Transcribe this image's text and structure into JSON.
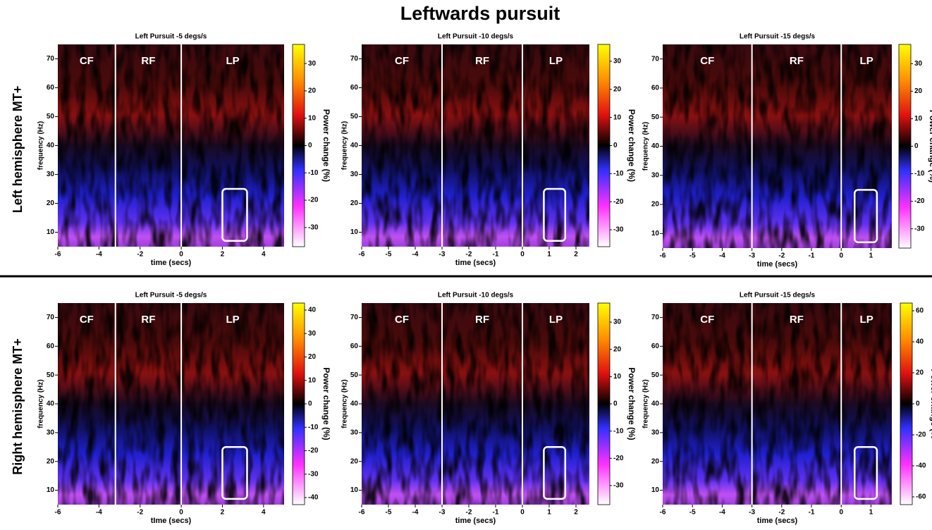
{
  "title": "Leftwards pursuit",
  "row_labels": [
    "Left hemisphere MT+",
    "Right hemisphere MT+"
  ],
  "chart_data": [
    {
      "type": "heatmap",
      "title": "Left Pursuit -5 degs/s",
      "xlabel": "time (secs)",
      "ylabel": "frequency (Hz)",
      "xlim": [
        -6,
        5
      ],
      "xticks": [
        -6,
        -4,
        -2,
        0,
        2,
        4
      ],
      "ylim": [
        5,
        75
      ],
      "yticks": [
        10,
        20,
        30,
        40,
        50,
        60,
        70
      ],
      "phases": [
        {
          "label": "CF",
          "start": -6
        },
        {
          "label": "RF",
          "start": -3.2
        },
        {
          "label": "LP",
          "start": 0
        }
      ],
      "highlight": {
        "x": [
          2,
          3.2
        ],
        "y": [
          7,
          25
        ]
      },
      "colorbar": {
        "label": "Power change (%)",
        "lim": [
          -37,
          37
        ],
        "ticks": [
          -30,
          -20,
          -10,
          0,
          10,
          20,
          30
        ]
      }
    },
    {
      "type": "heatmap",
      "title": "Left Pursuit -10 degs/s",
      "xlabel": "time (secs)",
      "ylabel": "frequency (Hz)",
      "xlim": [
        -6,
        2.5
      ],
      "xticks": [
        -6,
        -5,
        -4,
        -3,
        -2,
        -1,
        0,
        1,
        2
      ],
      "ylim": [
        5,
        75
      ],
      "yticks": [
        10,
        20,
        30,
        40,
        50,
        60,
        70
      ],
      "phases": [
        {
          "label": "CF",
          "start": -6
        },
        {
          "label": "RF",
          "start": -3
        },
        {
          "label": "LP",
          "start": 0
        }
      ],
      "highlight": {
        "x": [
          0.8,
          1.6
        ],
        "y": [
          7,
          25
        ]
      },
      "colorbar": {
        "label": "Power change (%)",
        "lim": [
          -36,
          36
        ],
        "ticks": [
          -30,
          -20,
          -10,
          0,
          10,
          20,
          30
        ]
      }
    },
    {
      "type": "heatmap",
      "title": "Left Pursuit -15 degs/s",
      "xlabel": "time (secs)",
      "ylabel": "frequency (Hz)",
      "xlim": [
        -6,
        1.7
      ],
      "xticks": [
        -6,
        -5,
        -4,
        -3,
        -2,
        -1,
        0,
        1
      ],
      "ylim": [
        5,
        75
      ],
      "yticks": [
        10,
        20,
        30,
        40,
        50,
        60,
        70
      ],
      "phases": [
        {
          "label": "CF",
          "start": -6
        },
        {
          "label": "RF",
          "start": -3
        },
        {
          "label": "LP",
          "start": 0
        }
      ],
      "highlight": {
        "x": [
          0.45,
          1.2
        ],
        "y": [
          7,
          25
        ]
      },
      "colorbar": {
        "label": "Power change (%)",
        "lim": [
          -37,
          37
        ],
        "ticks": [
          -30,
          -20,
          -10,
          0,
          10,
          20,
          30
        ]
      }
    },
    {
      "type": "heatmap",
      "title": "Left Pursuit -5 degs/s",
      "xlabel": "tIme (secs)",
      "ylabel": "frequency (Hz)",
      "xlim": [
        -6,
        5
      ],
      "xticks": [
        -6,
        -4,
        -2,
        0,
        2,
        4
      ],
      "ylim": [
        5,
        75
      ],
      "yticks": [
        10,
        20,
        30,
        40,
        50,
        60,
        70
      ],
      "phases": [
        {
          "label": "CF",
          "start": -6
        },
        {
          "label": "RF",
          "start": -3.2
        },
        {
          "label": "LP",
          "start": 0
        }
      ],
      "highlight": {
        "x": [
          2,
          3.2
        ],
        "y": [
          7,
          25
        ]
      },
      "colorbar": {
        "label": "Power change (%)",
        "lim": [
          -43,
          43
        ],
        "ticks": [
          -40,
          -30,
          -20,
          -10,
          0,
          10,
          20,
          30,
          40
        ]
      }
    },
    {
      "type": "heatmap",
      "title": "Left Pursuit -10 degs/s",
      "xlabel": "time (secs)",
      "ylabel": "frequency (Hz)",
      "xlim": [
        -6,
        2.5
      ],
      "xticks": [
        -6,
        -5,
        -4,
        -3,
        -2,
        -1,
        0,
        1,
        2
      ],
      "ylim": [
        5,
        75
      ],
      "yticks": [
        10,
        20,
        30,
        40,
        50,
        60,
        70
      ],
      "phases": [
        {
          "label": "CF",
          "start": -6
        },
        {
          "label": "RF",
          "start": -3
        },
        {
          "label": "LP",
          "start": 0
        }
      ],
      "highlight": {
        "x": [
          0.8,
          1.6
        ],
        "y": [
          7,
          25
        ]
      },
      "colorbar": {
        "label": "Power change (%)",
        "lim": [
          -37,
          37
        ],
        "ticks": [
          -30,
          -20,
          -10,
          0,
          10,
          20,
          30
        ]
      }
    },
    {
      "type": "heatmap",
      "title": "Left Pursuit -15 degs/s",
      "xlabel": "time (secs)",
      "ylabel": "frequency (Hz)",
      "xlim": [
        -6,
        1.7
      ],
      "xticks": [
        -6,
        -5,
        -4,
        -3,
        -2,
        -1,
        0,
        1
      ],
      "ylim": [
        5,
        75
      ],
      "yticks": [
        10,
        20,
        30,
        40,
        50,
        60,
        70
      ],
      "phases": [
        {
          "label": "CF",
          "start": -6
        },
        {
          "label": "RF",
          "start": -3
        },
        {
          "label": "LP",
          "start": 0
        }
      ],
      "highlight": {
        "x": [
          0.45,
          1.2
        ],
        "y": [
          7,
          25
        ]
      },
      "colorbar": {
        "label": "Power change (%",
        "lim": [
          -65,
          65
        ],
        "ticks": [
          -60,
          -40,
          -20,
          0,
          20,
          40,
          60
        ]
      }
    }
  ]
}
